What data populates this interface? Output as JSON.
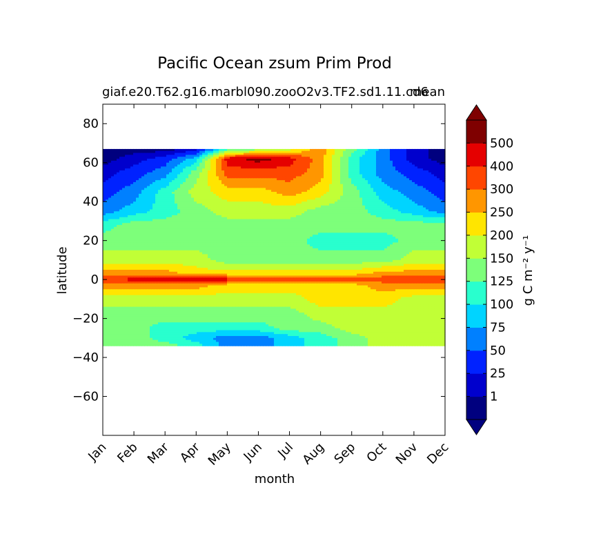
{
  "chart_data": {
    "type": "heatmap",
    "title": "Pacific Ocean zsum Prim Prod",
    "subtitle_left": "giaf.e20.T62.g16.marbl090.zooO2v3.TF2.sd1.11.cd6",
    "subtitle_right": "mean",
    "xlabel": "month",
    "ylabel": "latitude",
    "x_categories": [
      "Jan",
      "Feb",
      "Mar",
      "Apr",
      "May",
      "Jun",
      "Jul",
      "Aug",
      "Sep",
      "Oct",
      "Nov",
      "Dec"
    ],
    "ylim": [
      -80,
      90
    ],
    "y_ticks": [
      80,
      60,
      40,
      20,
      0,
      -20,
      -40,
      -60
    ],
    "data_lat_range": [
      -34,
      67
    ],
    "grid": false,
    "colorbar": {
      "label": "g C m⁻² y⁻¹",
      "levels": [
        "1",
        "25",
        "50",
        "75",
        "100",
        "125",
        "150",
        "200",
        "250",
        "300",
        "400",
        "500"
      ],
      "colors": [
        "#00007f",
        "#0000cd",
        "#0022ff",
        "#0080ff",
        "#00d4ff",
        "#29ffce",
        "#7dff7a",
        "#c1ff36",
        "#ffe500",
        "#ff9600",
        "#ff4600",
        "#e50000",
        "#7f0000"
      ],
      "extend": "both"
    },
    "lat_profiles": [
      {
        "lat": 67,
        "values": [
          0,
          0,
          0,
          1,
          5,
          6,
          7,
          9,
          6,
          3,
          1,
          0
        ]
      },
      {
        "lat": 62,
        "values": [
          0,
          1,
          2,
          4,
          11,
          12,
          11,
          9,
          5,
          3,
          1,
          0
        ]
      },
      {
        "lat": 55,
        "values": [
          1,
          2,
          3,
          6,
          10,
          10,
          10,
          9,
          5,
          3,
          2,
          1
        ]
      },
      {
        "lat": 45,
        "values": [
          2,
          3,
          5,
          7,
          8,
          8,
          9,
          8,
          6,
          4,
          3,
          2
        ]
      },
      {
        "lat": 35,
        "values": [
          3,
          4,
          5,
          6,
          7,
          7,
          7,
          6,
          6,
          5,
          4,
          3
        ]
      },
      {
        "lat": 28,
        "values": [
          5,
          6,
          6,
          6,
          6,
          6,
          6,
          6,
          6,
          6,
          6,
          6
        ]
      },
      {
        "lat": 20,
        "values": [
          6,
          6,
          6,
          6,
          6,
          6,
          6,
          5,
          5,
          5,
          6,
          6
        ]
      },
      {
        "lat": 10,
        "values": [
          7,
          7,
          7,
          7,
          6,
          6,
          6,
          6,
          6,
          6,
          7,
          7
        ]
      },
      {
        "lat": 3,
        "values": [
          9,
          9,
          9,
          8,
          8,
          8,
          8,
          8,
          8,
          9,
          9,
          9
        ]
      },
      {
        "lat": 0,
        "values": [
          10,
          11,
          11,
          11,
          11,
          10,
          10,
          10,
          10,
          10,
          10,
          10
        ]
      },
      {
        "lat": -3,
        "values": [
          9,
          9,
          9,
          9,
          8,
          8,
          8,
          8,
          8,
          9,
          9,
          9
        ]
      },
      {
        "lat": -10,
        "values": [
          7,
          7,
          7,
          7,
          7,
          7,
          7,
          8,
          8,
          8,
          7,
          7
        ]
      },
      {
        "lat": -18,
        "values": [
          6,
          6,
          6,
          6,
          6,
          6,
          6,
          7,
          7,
          7,
          7,
          7
        ]
      },
      {
        "lat": -25,
        "values": [
          6,
          6,
          5,
          5,
          5,
          5,
          6,
          6,
          7,
          7,
          7,
          7
        ]
      },
      {
        "lat": -30,
        "values": [
          6,
          6,
          5,
          4,
          3,
          3,
          4,
          5,
          6,
          7,
          7,
          7
        ]
      },
      {
        "lat": -34,
        "values": [
          6,
          6,
          6,
          5,
          3,
          3,
          4,
          5,
          6,
          7,
          7,
          7
        ]
      }
    ]
  }
}
